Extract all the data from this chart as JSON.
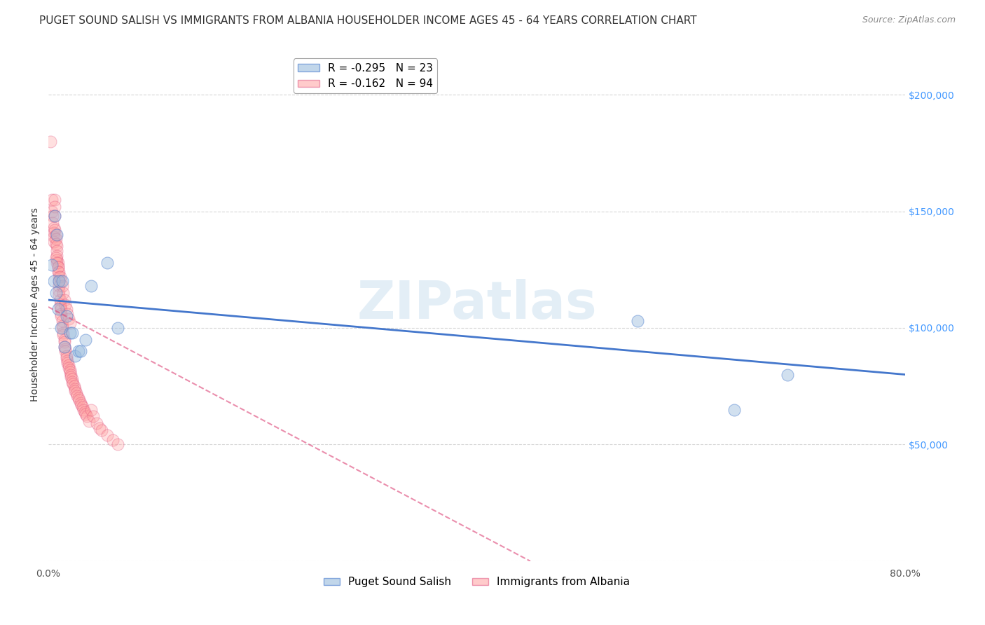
{
  "title": "PUGET SOUND SALISH VS IMMIGRANTS FROM ALBANIA HOUSEHOLDER INCOME AGES 45 - 64 YEARS CORRELATION CHART",
  "source": "Source: ZipAtlas.com",
  "ylabel": "Householder Income Ages 45 - 64 years",
  "xlim": [
    0.0,
    0.8
  ],
  "ylim": [
    0,
    220000
  ],
  "yticks": [
    0,
    50000,
    100000,
    150000,
    200000
  ],
  "ytick_labels": [
    "",
    "$50,000",
    "$100,000",
    "$150,000",
    "$200,000"
  ],
  "xticks": [
    0.0,
    0.1,
    0.2,
    0.3,
    0.4,
    0.5,
    0.6,
    0.7,
    0.8
  ],
  "xtick_labels": [
    "0.0%",
    "",
    "",
    "",
    "",
    "",
    "",
    "",
    "80.0%"
  ],
  "background_color": "#ffffff",
  "puget_sound_salish_x": [
    0.003,
    0.005,
    0.006,
    0.007,
    0.008,
    0.009,
    0.01,
    0.012,
    0.013,
    0.015,
    0.017,
    0.02,
    0.022,
    0.025,
    0.028,
    0.03,
    0.035,
    0.04,
    0.055,
    0.065,
    0.55,
    0.64,
    0.69
  ],
  "puget_sound_salish_y": [
    127000,
    120000,
    148000,
    115000,
    140000,
    108000,
    120000,
    100000,
    120000,
    92000,
    105000,
    98000,
    98000,
    88000,
    90000,
    90000,
    95000,
    118000,
    128000,
    100000,
    103000,
    65000,
    80000
  ],
  "albania_x": [
    0.002,
    0.003,
    0.003,
    0.004,
    0.004,
    0.005,
    0.005,
    0.005,
    0.005,
    0.006,
    0.006,
    0.006,
    0.006,
    0.007,
    0.007,
    0.007,
    0.008,
    0.008,
    0.008,
    0.008,
    0.009,
    0.009,
    0.009,
    0.01,
    0.01,
    0.01,
    0.01,
    0.01,
    0.011,
    0.011,
    0.011,
    0.012,
    0.012,
    0.012,
    0.013,
    0.013,
    0.013,
    0.014,
    0.014,
    0.015,
    0.015,
    0.015,
    0.016,
    0.016,
    0.017,
    0.017,
    0.018,
    0.018,
    0.019,
    0.019,
    0.02,
    0.02,
    0.021,
    0.021,
    0.022,
    0.022,
    0.023,
    0.024,
    0.025,
    0.025,
    0.026,
    0.027,
    0.028,
    0.029,
    0.03,
    0.031,
    0.032,
    0.033,
    0.034,
    0.035,
    0.036,
    0.038,
    0.04,
    0.042,
    0.045,
    0.048,
    0.05,
    0.055,
    0.06,
    0.065,
    0.007,
    0.008,
    0.009,
    0.01,
    0.011,
    0.012,
    0.013,
    0.014,
    0.015,
    0.016,
    0.017,
    0.018,
    0.019,
    0.02
  ],
  "albania_y": [
    180000,
    155000,
    150000,
    148000,
    145000,
    143000,
    141000,
    139000,
    137000,
    155000,
    152000,
    148000,
    142000,
    140000,
    138000,
    136000,
    135000,
    133000,
    131000,
    129000,
    128000,
    126000,
    124000,
    122000,
    120000,
    118000,
    116000,
    114000,
    112000,
    110000,
    109000,
    108000,
    106000,
    105000,
    103000,
    101000,
    100000,
    98000,
    97000,
    95000,
    94000,
    92000,
    91000,
    90000,
    88000,
    87000,
    86000,
    85000,
    84000,
    83000,
    82000,
    81000,
    80000,
    79000,
    78000,
    77000,
    76000,
    75000,
    74000,
    73000,
    72000,
    71000,
    70000,
    69000,
    68000,
    67000,
    66000,
    65000,
    64000,
    63000,
    62000,
    60000,
    65000,
    62000,
    59000,
    57000,
    56000,
    54000,
    52000,
    50000,
    130000,
    128000,
    126000,
    124000,
    122000,
    120000,
    118000,
    115000,
    112000,
    110000,
    108000,
    106000,
    104000,
    102000
  ],
  "blue_line_x": [
    0.0,
    0.8
  ],
  "blue_line_y": [
    112000,
    80000
  ],
  "pink_line_x": [
    0.0,
    0.45
  ],
  "pink_line_y": [
    109000,
    0
  ],
  "grid_color": "#cccccc",
  "blue_color": "#99bbdd",
  "blue_line_color": "#4477cc",
  "pink_color": "#ff9999",
  "pink_line_color": "#dd4477",
  "title_fontsize": 11,
  "axis_label_fontsize": 10,
  "tick_fontsize": 10,
  "right_tick_color": "#4499ff"
}
